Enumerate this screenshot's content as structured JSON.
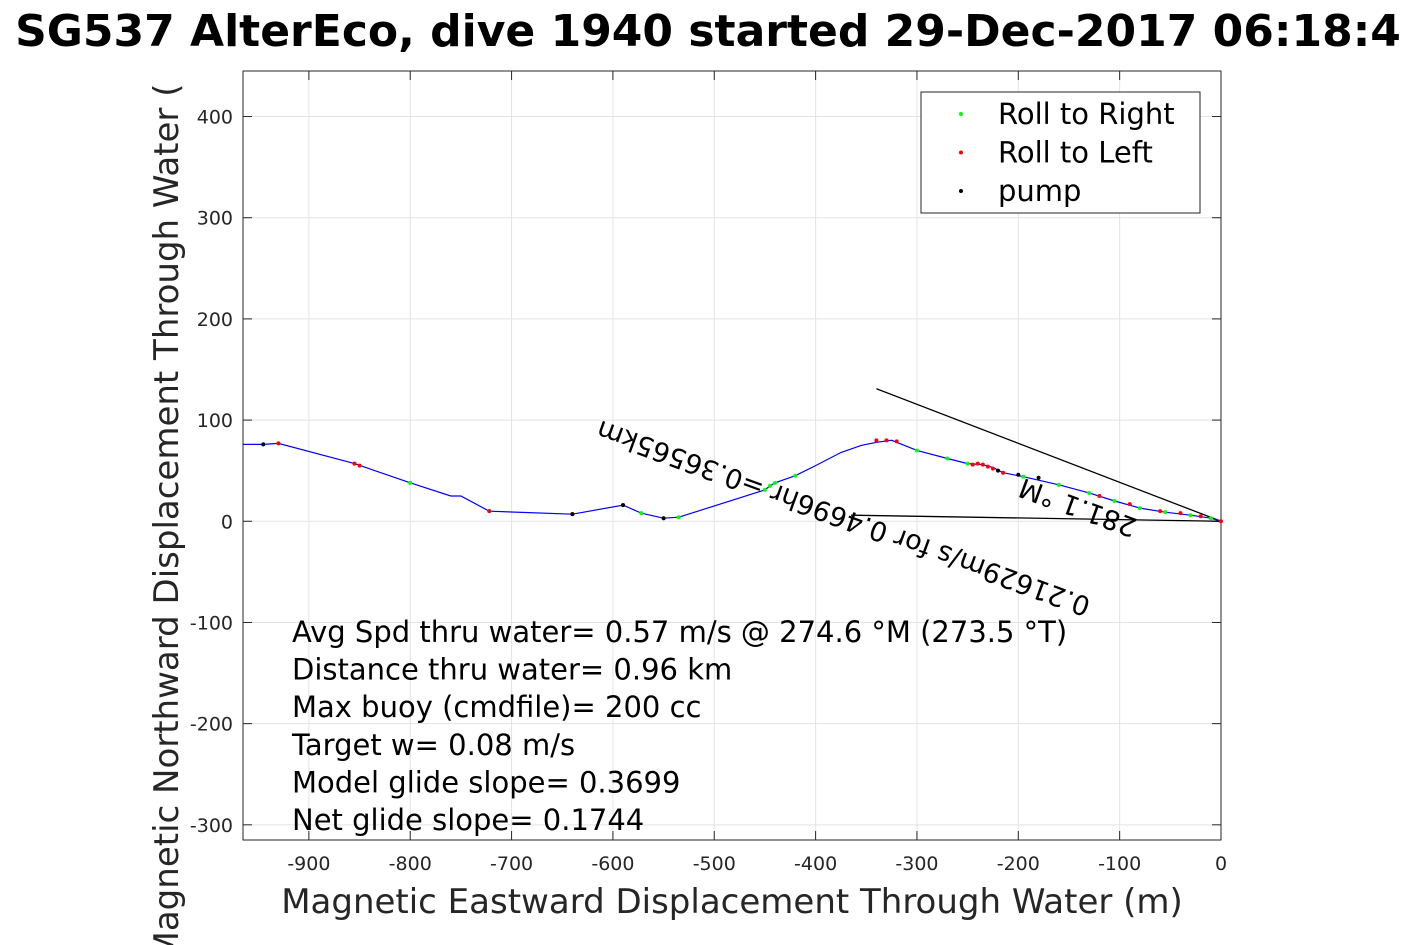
{
  "chart_data": {
    "type": "line",
    "title": "SG537 AlterEco, dive 1940 started 29-Dec-2017 06:18:4",
    "xlabel": "Magnetic Eastward Displacement Through Water (m)",
    "ylabel": "Magnetic Northward Displacement Through Water (",
    "xlim": [
      -965,
      0
    ],
    "ylim": [
      -315,
      445
    ],
    "xticks": [
      -900,
      -800,
      -700,
      -600,
      -500,
      -400,
      -300,
      -200,
      -100,
      0
    ],
    "yticks": [
      -300,
      -200,
      -100,
      0,
      100,
      200,
      300,
      400
    ],
    "grid": true,
    "legend": {
      "placement": "top-right",
      "entries": [
        {
          "label": "Roll to Right",
          "color": "#00ff00"
        },
        {
          "label": "Roll to Left",
          "color": "#ff0000"
        },
        {
          "label": "pump",
          "color": "#000000"
        }
      ]
    },
    "track": {
      "color": "#0000ff",
      "x": [
        -965,
        -945,
        -930,
        -855,
        -800,
        -760,
        -750,
        -722,
        -640,
        -590,
        -572,
        -550,
        -535,
        -450,
        -445,
        -440,
        -420,
        -400,
        -375,
        -355,
        -340,
        -325,
        -300,
        -270,
        -250,
        -235,
        -225,
        -215,
        -195,
        -160,
        -130,
        -105,
        -80,
        -55,
        -30,
        -10,
        0
      ],
      "y": [
        76,
        76,
        77,
        57,
        38,
        25,
        25,
        10,
        7,
        16,
        8,
        3,
        4,
        31,
        35,
        38,
        45,
        55,
        68,
        75,
        78,
        80,
        70,
        62,
        57,
        56,
        53,
        48,
        44,
        36,
        28,
        20,
        13,
        9,
        6,
        3,
        0
      ]
    },
    "roll_right_points": {
      "x": [
        -945,
        -930,
        -800,
        -722,
        -572,
        -550,
        -535,
        -450,
        -445,
        -440,
        -420,
        -300,
        -270,
        -250,
        -235,
        -195,
        -160,
        -130,
        -105,
        -80,
        -55,
        -30,
        -10
      ],
      "y": [
        76,
        77,
        38,
        10,
        8,
        3,
        4,
        31,
        35,
        38,
        45,
        70,
        62,
        57,
        56,
        44,
        36,
        28,
        20,
        13,
        9,
        6,
        3
      ]
    },
    "roll_left_points": {
      "x": [
        -930,
        -855,
        -850,
        -722,
        -640,
        -590,
        -340,
        -330,
        -320,
        -245,
        -240,
        -235,
        -230,
        -225,
        -215,
        -120,
        -90,
        -60,
        -40,
        -20,
        0
      ],
      "y": [
        77,
        57,
        55,
        10,
        7,
        16,
        80,
        80,
        79,
        56,
        57,
        56,
        54,
        52,
        48,
        25,
        17,
        10,
        8,
        5,
        0
      ]
    },
    "pump_points": {
      "x": [
        -945,
        -640,
        -590,
        -550,
        -220,
        -200,
        -180
      ],
      "y": [
        76,
        7,
        16,
        3,
        50,
        46,
        43
      ]
    },
    "extra_lines": [
      {
        "color": "#000000",
        "x": [
          -340,
          0
        ],
        "y": [
          131,
          0
        ]
      },
      {
        "color": "#000000",
        "x": [
          -365,
          0
        ],
        "y": [
          6,
          0
        ]
      }
    ],
    "rotated_labels": [
      {
        "text": "0.21629m/s for 0.4696hr =0.36565km",
        "x": -612,
        "y": 100,
        "angle": 200
      },
      {
        "text": "281.1 °M",
        "x": -195,
        "y": 43,
        "angle": 200
      }
    ],
    "annotations": [
      "Avg Spd thru water=  0.57 m/s @ 274.6 °M (273.5 °T)",
      "Distance thru water=  0.96 km",
      "Max buoy (cmdfile)= 200 cc",
      "Target w= 0.08 m/s",
      "Model glide slope= 0.3699",
      "Net glide slope= 0.1744"
    ]
  }
}
